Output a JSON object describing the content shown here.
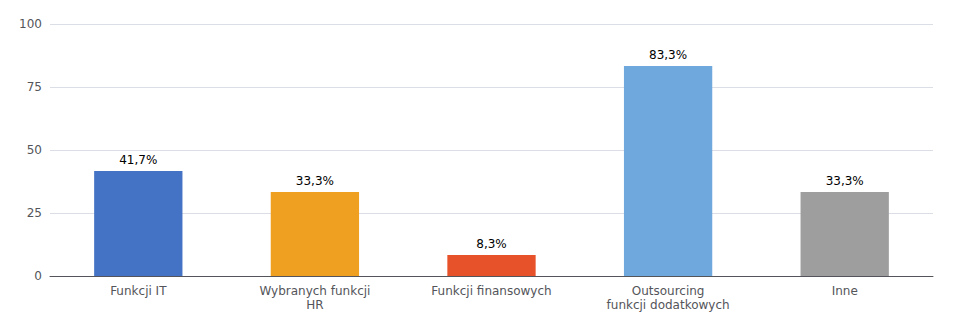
{
  "chart_data": {
    "type": "bar",
    "categories": [
      "Funkcji IT",
      "Wybranych funkcji\nHR",
      "Funkcji finansowych",
      "Outsourcing\nfunkcji dodatkowych",
      "Inne"
    ],
    "values": [
      41.7,
      33.3,
      8.3,
      83.3,
      33.3
    ],
    "value_labels": [
      "41,7%",
      "33,3%",
      "8,3%",
      "83,3%",
      "33,3%"
    ],
    "data_labels": true,
    "colors": [
      "#4472C4",
      "#F0A020",
      "#E8522A",
      "#6FA8DC",
      "#9E9E9E"
    ],
    "ylim": [
      0,
      100
    ],
    "yticks": [
      0,
      25,
      50,
      75,
      100
    ],
    "grid": true
  }
}
